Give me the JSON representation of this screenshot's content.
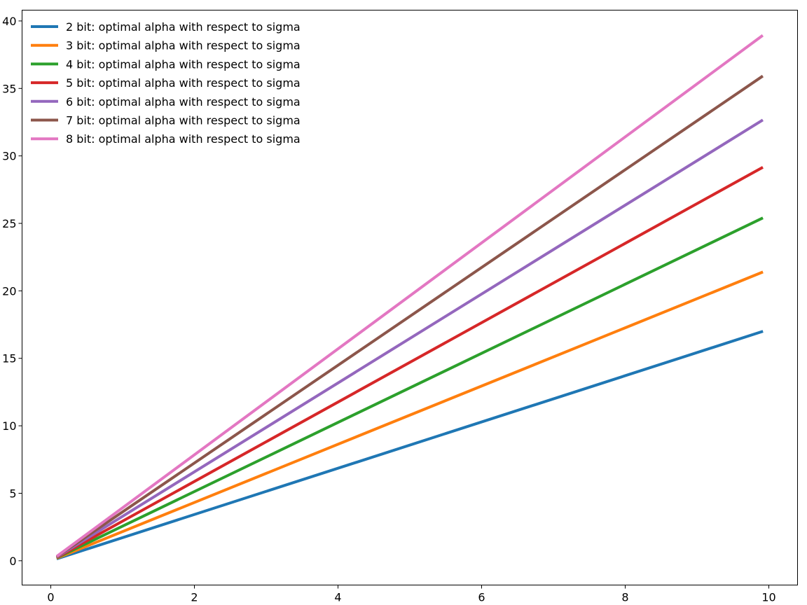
{
  "chart_data": {
    "type": "line",
    "title": "",
    "xlabel": "",
    "ylabel": "",
    "xlim": [
      -0.4,
      10.4
    ],
    "ylim": [
      -1.8,
      40.8
    ],
    "xticks": [
      0,
      2,
      4,
      6,
      8,
      10
    ],
    "yticks": [
      0,
      5,
      10,
      15,
      20,
      25,
      30,
      35,
      40
    ],
    "xtick_labels": [
      "0",
      "2",
      "4",
      "6",
      "8",
      "10"
    ],
    "ytick_labels": [
      "0",
      "5",
      "10",
      "15",
      "20",
      "25",
      "30",
      "35",
      "40"
    ],
    "grid": false,
    "legend_position": "top-left",
    "x": [
      0.1,
      9.9
    ],
    "series": [
      {
        "name": "2 bit: optimal alpha with respect to sigma",
        "color": "#1f77b4",
        "values": [
          0.17,
          16.97
        ]
      },
      {
        "name": "3 bit: optimal alpha with respect to sigma",
        "color": "#ff7f0e",
        "values": [
          0.22,
          21.36
        ]
      },
      {
        "name": "4 bit: optimal alpha with respect to sigma",
        "color": "#2ca02c",
        "values": [
          0.26,
          25.36
        ]
      },
      {
        "name": "5 bit: optimal alpha with respect to sigma",
        "color": "#d62728",
        "values": [
          0.29,
          29.11
        ]
      },
      {
        "name": "6 bit: optimal alpha with respect to sigma",
        "color": "#9467bd",
        "values": [
          0.33,
          32.61
        ]
      },
      {
        "name": "7 bit: optimal alpha with respect to sigma",
        "color": "#8c564b",
        "values": [
          0.36,
          35.86
        ]
      },
      {
        "name": "8 bit: optimal alpha with respect to sigma",
        "color": "#e377c2",
        "values": [
          0.39,
          38.87
        ]
      }
    ]
  }
}
